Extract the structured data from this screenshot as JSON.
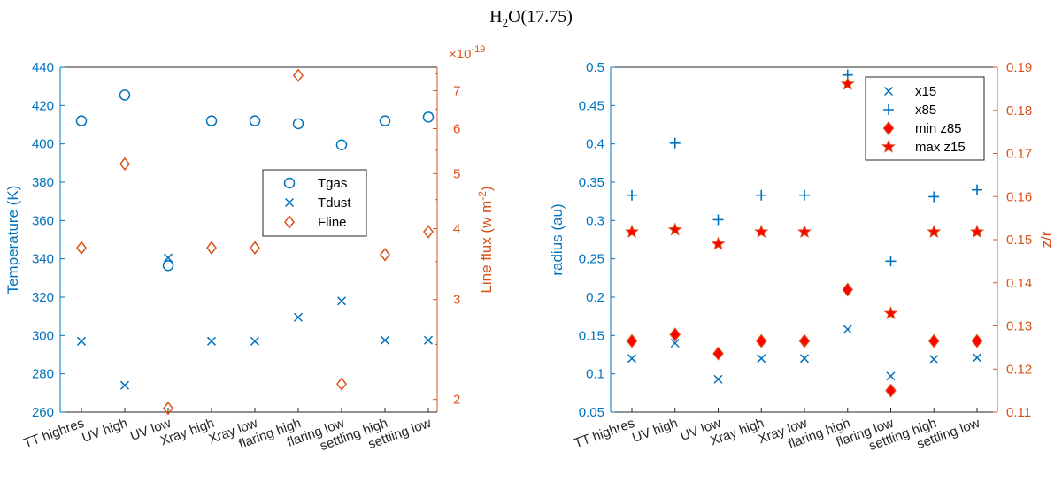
{
  "figure": {
    "title_main": "H",
    "title_sub": "2",
    "title_rest": "O(17.75)"
  },
  "colors": {
    "blue": "#0072BD",
    "orange": "#D95319",
    "red": "#FF0000",
    "axis_black": "#262626"
  },
  "chart_data": [
    {
      "type": "scatter",
      "title": "H2O(17.75)",
      "categories": [
        "TT highres",
        "UV high",
        "UV low",
        "Xray high",
        "Xray low",
        "flaring high",
        "flaring low",
        "settling high",
        "settling low"
      ],
      "ylabel": "Temperature (K)",
      "ylim": [
        260,
        440
      ],
      "yticks": [
        260,
        280,
        300,
        320,
        340,
        360,
        380,
        400,
        420,
        440
      ],
      "y2label": "Line flux (w m",
      "y2label_sup": "-2",
      "y2label_end": ")",
      "y2_scale": "log",
      "y2_multiplier": "×10",
      "y2_multiplier_exp": "-19",
      "y2lim": [
        1.9,
        7.7
      ],
      "y2ticks": [
        2,
        3,
        4,
        5,
        6,
        7
      ],
      "legend": "right-middle",
      "series": [
        {
          "name": "Tgas",
          "marker": "circle",
          "axis": "left",
          "values": [
            412,
            425.5,
            336.5,
            412,
            412,
            410.5,
            399.5,
            412,
            414
          ]
        },
        {
          "name": "Tdust",
          "marker": "x",
          "axis": "left",
          "values": [
            297,
            274,
            340.5,
            297,
            297,
            309.5,
            318,
            297.5,
            297.5
          ]
        },
        {
          "name": "Fline",
          "marker": "diamond",
          "axis": "right",
          "values": [
            3.7,
            5.2,
            1.93,
            3.7,
            3.7,
            7.45,
            2.13,
            3.6,
            3.95
          ]
        }
      ]
    },
    {
      "type": "scatter",
      "categories": [
        "TT highres",
        "UV high",
        "UV low",
        "Xray high",
        "Xray low",
        "flaring high",
        "flaring low",
        "settling high",
        "settling low"
      ],
      "ylabel": "radius (au)",
      "ylim": [
        0.05,
        0.5
      ],
      "yticks": [
        "0.05",
        "0.1",
        "0.15",
        "0.2",
        "0.25",
        "0.3",
        "0.35",
        "0.4",
        "0.45",
        "0.5"
      ],
      "y2label": "z/r",
      "y2lim": [
        0.11,
        0.19
      ],
      "y2ticks": [
        "0.11",
        "0.12",
        "0.13",
        "0.14",
        "0.15",
        "0.16",
        "0.17",
        "0.18",
        "0.19"
      ],
      "legend": "top-right",
      "series": [
        {
          "name": "x15",
          "marker": "x",
          "axis": "left",
          "values": [
            0.12,
            0.14,
            0.093,
            0.12,
            0.12,
            0.158,
            0.097,
            0.119,
            0.121
          ]
        },
        {
          "name": "x85",
          "marker": "plus",
          "axis": "left",
          "values": [
            0.333,
            0.401,
            0.301,
            0.333,
            0.333,
            0.49,
            0.247,
            0.331,
            0.34
          ]
        },
        {
          "name": "min z85",
          "marker": "diamond",
          "axis": "right",
          "values": [
            0.1265,
            0.128,
            0.1236,
            0.1265,
            0.1265,
            0.1384,
            0.115,
            0.1265,
            0.1265
          ]
        },
        {
          "name": "max z15",
          "marker": "star",
          "axis": "right",
          "values": [
            0.1518,
            0.1523,
            0.149,
            0.1518,
            0.1518,
            0.1861,
            0.1329,
            0.1518,
            0.1518
          ]
        }
      ]
    }
  ]
}
